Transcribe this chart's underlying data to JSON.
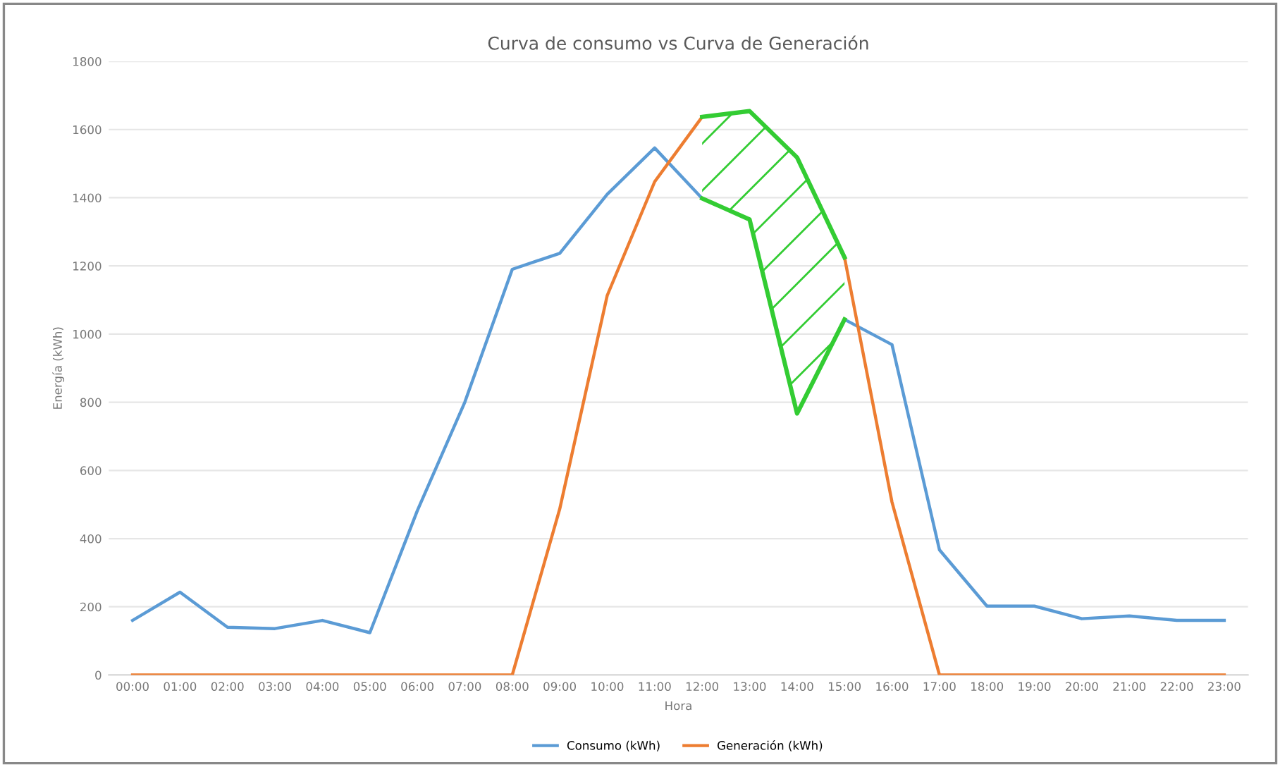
{
  "chart_data": {
    "type": "line",
    "title": "Curva de consumo vs Curva de Generación",
    "xlabel": "Hora",
    "ylabel": "Energía (kWh)",
    "categories": [
      "00:00",
      "01:00",
      "02:00",
      "03:00",
      "04:00",
      "05:00",
      "06:00",
      "07:00",
      "08:00",
      "09:00",
      "10:00",
      "11:00",
      "12:00",
      "13:00",
      "14:00",
      "15:00",
      "16:00",
      "17:00",
      "18:00",
      "19:00",
      "20:00",
      "21:00",
      "22:00",
      "23:00"
    ],
    "series": [
      {
        "name": "Consumo (kWh)",
        "color": "#5b9bd5",
        "values": [
          160,
          243,
          140,
          136,
          160,
          124,
          482,
          800,
          1190,
          1237,
          1410,
          1546,
          1398,
          1336,
          767,
          1043,
          969,
          367,
          202,
          202,
          165,
          173,
          160,
          160
        ]
      },
      {
        "name": "Generación (kWh)",
        "color": "#ed7d31",
        "values": [
          0,
          0,
          0,
          0,
          0,
          0,
          0,
          0,
          0,
          487,
          1113,
          1447,
          1637,
          1654,
          1518,
          1225,
          507,
          0,
          0,
          0,
          0,
          0,
          0,
          0
        ]
      },
      {
        "color": "#33cc33",
        "values": [
          null,
          null,
          null,
          null,
          null,
          null,
          null,
          null,
          null,
          null,
          null,
          null,
          1637,
          1654,
          1518,
          1225,
          null,
          null,
          null,
          null,
          null,
          null,
          null,
          null
        ]
      },
      {
        "color": "#33cc33",
        "values": [
          null,
          null,
          null,
          null,
          null,
          null,
          null,
          null,
          null,
          null,
          null,
          null,
          1398,
          1336,
          767,
          1043,
          null,
          null,
          null,
          null,
          null,
          null,
          null,
          null
        ]
      }
    ],
    "ylim": [
      0,
      1800
    ],
    "yticks": [
      0,
      200,
      400,
      600,
      800,
      1000,
      1200,
      1400,
      1600,
      1800
    ],
    "grid": "y",
    "legend": "bottom"
  }
}
